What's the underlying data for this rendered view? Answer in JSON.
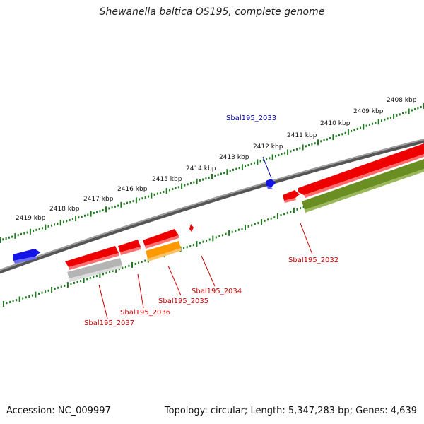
{
  "title": "Shewanella baltica OS195, complete genome",
  "footer": {
    "accession": "Accession: NC_009997",
    "topology": "Topology: circular; Length: 5,347,283 bp; Genes: 4,639"
  },
  "colors": {
    "backbone": "#7a7a7a",
    "ticks": "#1e7a1e",
    "gene_red": "#ee0000",
    "gene_blue": "#1414e6",
    "gene_olive": "#6b8e23",
    "gene_orange": "#ff9900",
    "gene_gray": "#b4b4b4",
    "label_red": "#cc0000",
    "label_blue": "#0000aa"
  },
  "scale_labels": [
    "2408 kbp",
    "2409 kbp",
    "2410 kbp",
    "2411 kbp",
    "2412 kbp",
    "2413 kbp",
    "2414 kbp",
    "2415 kbp",
    "2416 kbp",
    "2417 kbp",
    "2418 kbp",
    "2419 kbp"
  ],
  "gene_labels": [
    {
      "text": "Sbal195_2033",
      "color": "blue"
    },
    {
      "text": "Sbal195_2032",
      "color": "red"
    },
    {
      "text": "Sbal195_2034",
      "color": "red"
    },
    {
      "text": "Sbal195_2035",
      "color": "red"
    },
    {
      "text": "Sbal195_2036",
      "color": "red"
    },
    {
      "text": "Sbal195_2037",
      "color": "red"
    }
  ]
}
